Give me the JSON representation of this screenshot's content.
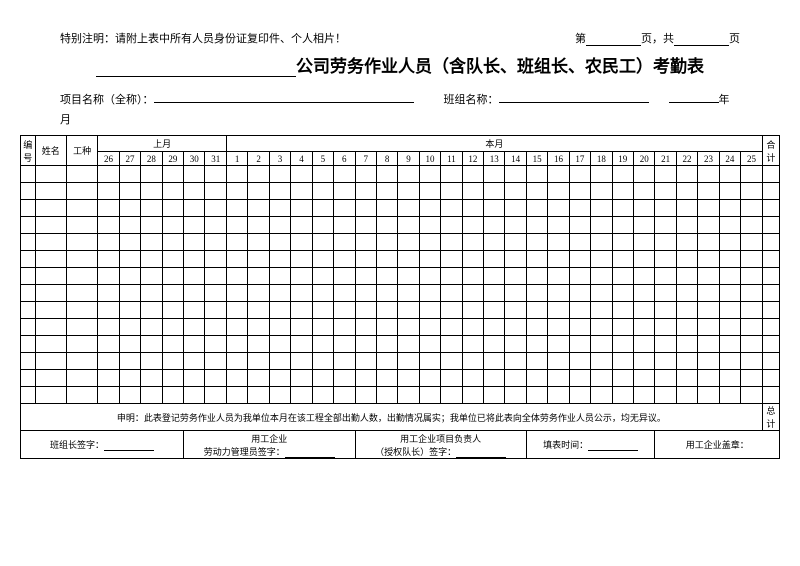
{
  "notice": "特别注明：请附上表中所有人员身份证复印件、个人相片！",
  "page": {
    "prefix": "第",
    "mid": "页，共",
    "suffix": "页"
  },
  "title_suffix": "公司劳务作业人员（含队长、班组长、农民工）考勤表",
  "meta": {
    "project_label": "项目名称（全称）：",
    "team_label": "班组名称：",
    "year_suffix": "年",
    "month_suffix": "月"
  },
  "headers": {
    "no": "编号",
    "name": "姓名",
    "work_type": "工种",
    "last_month": "上月",
    "this_month": "本月",
    "total": "合计",
    "last_days": [
      "26",
      "27",
      "28",
      "29",
      "30",
      "31"
    ],
    "this_days": [
      "1",
      "2",
      "3",
      "4",
      "5",
      "6",
      "7",
      "8",
      "9",
      "10",
      "11",
      "12",
      "13",
      "14",
      "15",
      "16",
      "17",
      "18",
      "19",
      "20",
      "21",
      "22",
      "23",
      "24",
      "25"
    ]
  },
  "row_count": 14,
  "statement": "申明：此表登记劳务作业人员为我单位本月在该工程全部出勤人数，出勤情况属实；我单位已将此表向全体劳务作业人员公示，均无异议。",
  "grand_total": "总计",
  "sig": {
    "team_leader": "班组长签字：",
    "labor_mgr_l1": "用工企业",
    "labor_mgr_l2": "劳动力管理员签字：",
    "proj_mgr_l1": "用工企业项目负责人",
    "proj_mgr_l2": "（授权队长）签字：",
    "fill_time": "填表时间：",
    "seal": "用工企业盖章："
  },
  "style": {
    "font_family": "SimSun",
    "border_color": "#000000",
    "background": "#ffffff",
    "title_fontsize_pt": 13,
    "body_fontsize_pt": 8,
    "small_fontsize_pt": 7
  }
}
